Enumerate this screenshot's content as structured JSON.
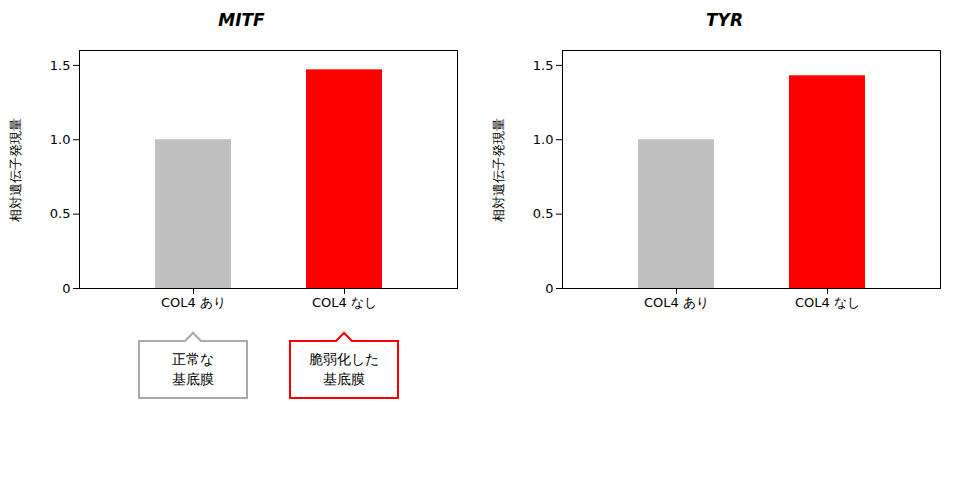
{
  "chart_data": [
    {
      "type": "bar",
      "title": "MITF",
      "categories": [
        "COL4 あり",
        "COL4 なし"
      ],
      "values": [
        1.0,
        1.47
      ],
      "colors": [
        "#c0c0c0",
        "#ff0000"
      ],
      "ylabel": "相対遺伝子発現量",
      "ylim": [
        0,
        1.6
      ],
      "yticks": [
        0,
        0.5,
        {
          "value": 1.0,
          "label": "1.0"
        },
        1.5
      ],
      "grid": false,
      "annotations": [
        {
          "text": "正常な\n基底膜",
          "color": "#aaaaaa"
        },
        {
          "text": "脆弱化した\n基底膜",
          "color": "#ff0000"
        }
      ]
    },
    {
      "type": "bar",
      "title": "TYR",
      "categories": [
        "COL4 あり",
        "COL4 なし"
      ],
      "values": [
        1.0,
        1.43
      ],
      "colors": [
        "#c0c0c0",
        "#ff0000"
      ],
      "ylabel": "相対遺伝子発現量",
      "ylim": [
        0,
        1.6
      ],
      "yticks": [
        0,
        0.5,
        {
          "value": 1.0,
          "label": "1.0"
        },
        1.5
      ],
      "grid": false
    }
  ]
}
